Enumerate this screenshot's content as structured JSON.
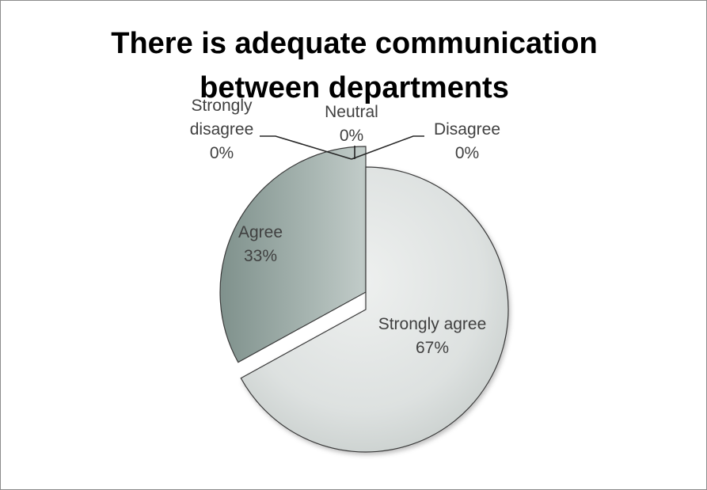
{
  "chart_data": {
    "type": "pie",
    "title_lines": [
      "There is adequate communication",
      "between departments"
    ],
    "categories": [
      "Strongly agree",
      "Agree",
      "Neutral",
      "Disagree",
      "Strongly disagree"
    ],
    "values": [
      67,
      33,
      0,
      0,
      0
    ],
    "value_labels": [
      "67%",
      "33%",
      "0%",
      "0%",
      "0%"
    ],
    "legend": "none",
    "colors": {
      "strongly_agree": "#dfe3e2",
      "agree": "#9aaaa6",
      "outline": "#3a3a3a",
      "leader": "#262626"
    }
  }
}
